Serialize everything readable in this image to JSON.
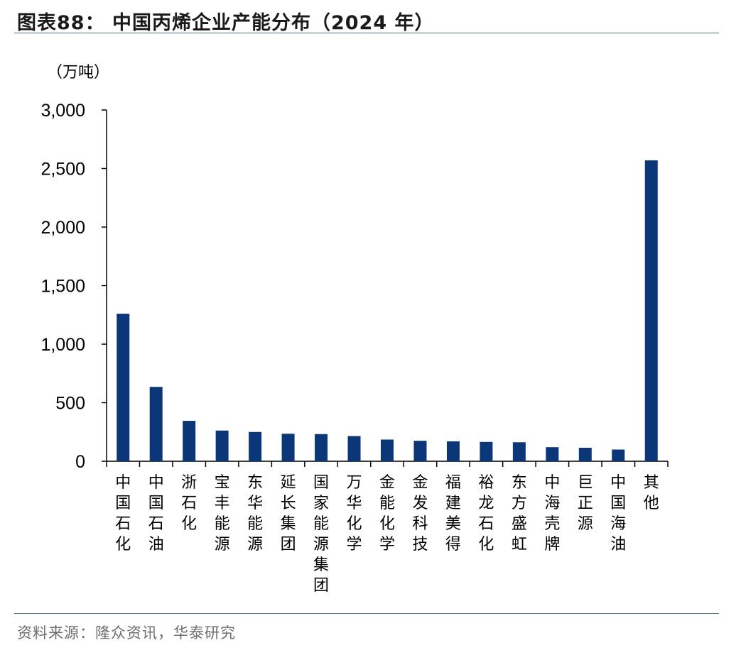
{
  "figure": {
    "title": "图表88：  中国丙烯企业产能分布（2024 年）",
    "unit": "（万吨）",
    "source": "资料来源：隆众资讯，华泰研究"
  },
  "colors": {
    "bar": "#0b3677",
    "axis": "#000000",
    "rule": "#5a6e8c"
  },
  "chart_data": {
    "type": "bar",
    "title": "中国丙烯企业产能分布（2024 年）",
    "ylabel": "（万吨）",
    "ylim": [
      0,
      3000
    ],
    "yticks": [
      0,
      500,
      1000,
      1500,
      2000,
      2500,
      3000
    ],
    "ytick_labels": [
      "0",
      "500",
      "1,000",
      "1,500",
      "2,000",
      "2,500",
      "3,000"
    ],
    "categories": [
      "中国石化",
      "中国石油",
      "浙石化",
      "宝丰能源",
      "东华能源",
      "延长集团",
      "国家能源集团",
      "万华化学",
      "金能化学",
      "金发科技",
      "福建美得",
      "裕龙石化",
      "东方盛虹",
      "中海壳牌",
      "巨正源",
      "中国海油",
      "其他"
    ],
    "values": [
      1260,
      635,
      345,
      262,
      250,
      235,
      232,
      215,
      185,
      175,
      170,
      165,
      162,
      120,
      115,
      100,
      2570
    ],
    "grid": false,
    "legend": "none"
  }
}
